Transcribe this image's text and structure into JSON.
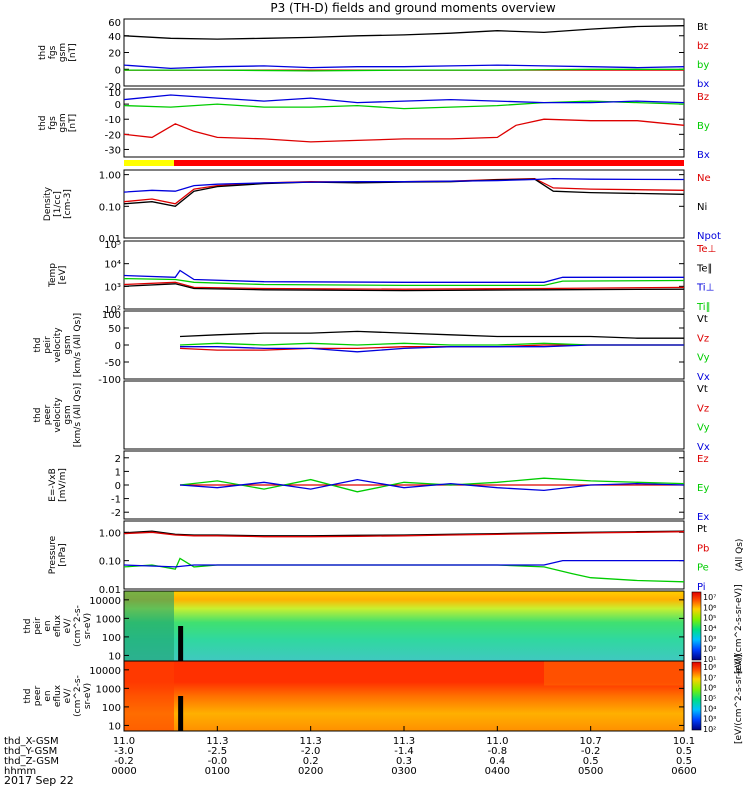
{
  "title": "P3 (TH-D) fields and ground moments overview",
  "date_label": "2017 Sep 22",
  "chart_data": [
    {
      "type": "line",
      "ylabel": [
        "thd",
        "fgs",
        "gsm",
        "[nT]"
      ],
      "ylim": [
        -20,
        60
      ],
      "yticks": [
        60,
        40,
        20,
        0,
        -20
      ],
      "series": [
        {
          "name": "Bt",
          "color": "#000000",
          "x": [
            0,
            0.5,
            1,
            1.5,
            2,
            2.5,
            3,
            3.5,
            4,
            4.5,
            5,
            5.5,
            6
          ],
          "values": [
            40,
            37,
            36,
            37,
            38,
            40,
            41,
            43,
            46,
            44,
            48,
            51,
            52
          ]
        },
        {
          "name": "bz",
          "color": "#dd0000",
          "x": [
            0,
            1,
            2,
            3,
            4,
            5,
            6
          ],
          "values": [
            -1,
            -1,
            -1,
            -1,
            -1,
            -1,
            -1
          ]
        },
        {
          "name": "by",
          "color": "#00cc00",
          "x": [
            0,
            1,
            2,
            3,
            4,
            5,
            6
          ],
          "values": [
            -1,
            -1,
            -2,
            -1,
            -1,
            0,
            0
          ]
        },
        {
          "name": "bx",
          "color": "#0000dd",
          "x": [
            0,
            0.5,
            1,
            1.5,
            2,
            2.5,
            3,
            3.5,
            4,
            4.5,
            5,
            5.5,
            6
          ],
          "values": [
            5,
            1,
            3,
            4,
            2,
            3,
            3,
            4,
            5,
            4,
            3,
            2,
            3
          ]
        }
      ]
    },
    {
      "type": "line",
      "ylabel": [
        "thd",
        "fgs",
        "gsm",
        "[nT]"
      ],
      "ylim": [
        -35,
        10
      ],
      "yticks": [
        10,
        0,
        -10,
        -20,
        -30
      ],
      "series": [
        {
          "name": "Bz",
          "color": "#dd0000",
          "x": [
            0,
            0.3,
            0.55,
            0.75,
            1,
            1.5,
            2,
            2.5,
            3,
            3.5,
            4,
            4.2,
            4.5,
            5,
            5.5,
            6
          ],
          "values": [
            -20,
            -22,
            -13,
            -18,
            -22,
            -23,
            -25,
            -24,
            -23,
            -23,
            -22,
            -14,
            -10,
            -11,
            -11,
            -14
          ]
        },
        {
          "name": "By",
          "color": "#00cc00",
          "x": [
            0,
            0.5,
            1,
            1.5,
            2,
            2.5,
            3,
            3.5,
            4,
            4.5,
            5,
            5.5,
            6
          ],
          "values": [
            -1,
            -2,
            0,
            -2,
            -2,
            -1,
            -3,
            -2,
            -1,
            1,
            2,
            1,
            0
          ]
        },
        {
          "name": "Bx",
          "color": "#0000dd",
          "x": [
            0,
            0.5,
            1,
            1.5,
            2,
            2.5,
            3,
            3.5,
            4,
            4.5,
            5,
            5.5,
            6
          ],
          "values": [
            3,
            6,
            4,
            2,
            4,
            1,
            2,
            3,
            2,
            1,
            1,
            2,
            1
          ]
        }
      ]
    },
    {
      "type": "line",
      "ylabel": [
        "Density",
        "[1/cc]",
        "[cm-3]"
      ],
      "yscale": "log",
      "ylim": [
        0.01,
        1.4
      ],
      "yticks": [
        1.0,
        0.1,
        0.01
      ],
      "yticklabels": [
        "1.00",
        "0.10",
        "0.01"
      ],
      "series": [
        {
          "name": "Ne",
          "color": "#dd0000",
          "x": [
            0,
            0.3,
            0.55,
            0.75,
            1,
            1.5,
            2,
            2.5,
            3,
            3.5,
            4,
            4.4,
            4.6,
            5,
            6
          ],
          "values": [
            0.14,
            0.17,
            0.12,
            0.35,
            0.45,
            0.55,
            0.6,
            0.58,
            0.6,
            0.62,
            0.7,
            0.75,
            0.38,
            0.35,
            0.32
          ]
        },
        {
          "name": "Ni",
          "color": "#000000",
          "x": [
            0,
            0.3,
            0.55,
            0.75,
            1,
            1.5,
            2,
            2.5,
            3,
            3.5,
            4,
            4.4,
            4.6,
            5,
            6
          ],
          "values": [
            0.12,
            0.14,
            0.1,
            0.3,
            0.42,
            0.52,
            0.58,
            0.55,
            0.58,
            0.6,
            0.68,
            0.72,
            0.3,
            0.27,
            0.24
          ]
        },
        {
          "name": "Npot",
          "color": "#0000dd",
          "x": [
            0,
            0.3,
            0.55,
            0.75,
            1,
            1.5,
            2,
            2.5,
            3,
            3.5,
            4,
            4.4,
            4.6,
            5,
            6
          ],
          "values": [
            0.28,
            0.32,
            0.3,
            0.45,
            0.5,
            0.55,
            0.58,
            0.6,
            0.6,
            0.62,
            0.65,
            0.7,
            0.75,
            0.72,
            0.7
          ]
        }
      ]
    },
    {
      "type": "line",
      "ylabel": [
        "Temp",
        "[eV]"
      ],
      "yscale": "log",
      "ylim": [
        100,
        100000
      ],
      "yticks": [
        100000,
        10000,
        1000,
        100
      ],
      "yticklabels": [
        "10⁵",
        "10⁴",
        "10³",
        "10²"
      ],
      "series": [
        {
          "name": "Te⊥",
          "color": "#dd0000",
          "x": [
            0,
            0.55,
            0.75,
            1.5,
            3,
            4.5,
            6
          ],
          "values": [
            1200,
            1500,
            900,
            800,
            750,
            800,
            900
          ]
        },
        {
          "name": "Te∥",
          "color": "#000000",
          "x": [
            0,
            0.55,
            0.75,
            1.5,
            3,
            4.5,
            6
          ],
          "values": [
            1000,
            1300,
            800,
            700,
            650,
            700,
            750
          ]
        },
        {
          "name": "Ti⊥",
          "color": "#0000dd",
          "x": [
            0,
            0.55,
            0.6,
            0.75,
            1.5,
            3,
            4.5,
            4.7,
            6
          ],
          "values": [
            3000,
            2500,
            5000,
            2000,
            1600,
            1500,
            1500,
            2500,
            2500
          ]
        },
        {
          "name": "Ti∥",
          "color": "#00cc00",
          "x": [
            0,
            0.55,
            0.75,
            1.5,
            3,
            4.5,
            4.7,
            6
          ],
          "values": [
            2200,
            2000,
            1500,
            1200,
            1100,
            1100,
            1700,
            1800
          ]
        }
      ]
    },
    {
      "type": "line",
      "ylabel": [
        "thd",
        "peir",
        "velocity",
        "gsm",
        "[km/s (All Qs)]"
      ],
      "ylim": [
        -100,
        100
      ],
      "yticks": [
        100,
        50,
        0,
        -50,
        -100
      ],
      "series": [
        {
          "name": "Vt",
          "color": "#000000",
          "x": [
            0.6,
            1,
            1.5,
            2,
            2.5,
            3,
            3.5,
            4,
            4.5,
            5,
            5.5,
            6
          ],
          "values": [
            25,
            30,
            35,
            35,
            40,
            35,
            30,
            25,
            25,
            25,
            20,
            20
          ]
        },
        {
          "name": "Vz",
          "color": "#dd0000",
          "x": [
            0.6,
            1,
            1.5,
            2,
            2.5,
            3,
            3.5,
            4,
            4.5,
            5,
            5.5,
            6
          ],
          "values": [
            -10,
            -15,
            -15,
            -10,
            -10,
            -5,
            -5,
            -5,
            0,
            0,
            0,
            0
          ]
        },
        {
          "name": "Vy",
          "color": "#00cc00",
          "x": [
            0.6,
            1,
            1.5,
            2,
            2.5,
            3,
            3.5,
            4,
            4.5,
            5,
            5.5,
            6
          ],
          "values": [
            0,
            5,
            0,
            5,
            0,
            5,
            0,
            0,
            5,
            0,
            0,
            0
          ]
        },
        {
          "name": "Vx",
          "color": "#0000dd",
          "x": [
            0.6,
            1,
            1.5,
            2,
            2.5,
            3,
            3.5,
            4,
            4.5,
            5,
            5.5,
            6
          ],
          "values": [
            -5,
            -5,
            -10,
            -10,
            -20,
            -10,
            -5,
            -5,
            -5,
            0,
            0,
            0
          ]
        }
      ]
    },
    {
      "type": "line",
      "ylabel": [
        "thd",
        "peer",
        "velocity",
        "gsm",
        "[km/s (All Qs)]"
      ],
      "series": [
        {
          "name": "Vt",
          "color": "#000000",
          "values": []
        },
        {
          "name": "Vz",
          "color": "#dd0000",
          "values": []
        },
        {
          "name": "Vy",
          "color": "#00cc00",
          "values": []
        },
        {
          "name": "Vx",
          "color": "#0000dd",
          "values": []
        }
      ]
    },
    {
      "type": "line",
      "ylabel": [
        "E=-VxB",
        "[mV/m]"
      ],
      "ylim": [
        -2.5,
        2.5
      ],
      "yticks": [
        2,
        1,
        0,
        -1,
        -2
      ],
      "series": [
        {
          "name": "Ez",
          "color": "#dd0000",
          "x": [
            0.6,
            6
          ],
          "values": [
            0,
            0
          ]
        },
        {
          "name": "Ey",
          "color": "#00cc00",
          "x": [
            0.6,
            1,
            1.5,
            2,
            2.5,
            3,
            3.5,
            4,
            4.5,
            5,
            5.5,
            6
          ],
          "values": [
            0,
            0.3,
            -0.3,
            0.4,
            -0.5,
            0.2,
            0,
            0.2,
            0.5,
            0.3,
            0.2,
            0.1
          ]
        },
        {
          "name": "Ex",
          "color": "#0000dd",
          "x": [
            0.6,
            1,
            1.5,
            2,
            2.5,
            3,
            3.5,
            4,
            4.5,
            5,
            5.5,
            6
          ],
          "values": [
            0,
            -0.2,
            0.2,
            -0.3,
            0.4,
            -0.2,
            0.1,
            -0.2,
            -0.4,
            0,
            0.1,
            0
          ]
        }
      ]
    },
    {
      "type": "line",
      "ylabel": [
        "Pressure",
        "[nPa]"
      ],
      "ylabel_right": "(All Qs)",
      "yscale": "log",
      "ylim": [
        0.01,
        2.5
      ],
      "yticks": [
        1.0,
        0.1,
        0.01
      ],
      "yticklabels": [
        "1.00",
        "0.10",
        "0.01"
      ],
      "series": [
        {
          "name": "Pt",
          "color": "#000000",
          "x": [
            0,
            0.3,
            0.55,
            0.75,
            1,
            1.5,
            2,
            2.5,
            3,
            3.5,
            4,
            4.5,
            5,
            5.5,
            6
          ],
          "values": [
            0.95,
            1.1,
            0.85,
            0.8,
            0.8,
            0.75,
            0.75,
            0.78,
            0.8,
            0.85,
            0.9,
            0.95,
            1.0,
            1.05,
            1.1
          ]
        },
        {
          "name": "Pb",
          "color": "#dd0000",
          "x": [
            0,
            0.3,
            0.55,
            0.75,
            1,
            1.5,
            2,
            2.5,
            3,
            3.5,
            4,
            4.5,
            5,
            5.5,
            6
          ],
          "values": [
            0.9,
            1.0,
            0.8,
            0.75,
            0.75,
            0.7,
            0.7,
            0.72,
            0.75,
            0.8,
            0.85,
            0.9,
            0.95,
            1.0,
            1.05
          ]
        },
        {
          "name": "Pe",
          "color": "#00cc00",
          "x": [
            0,
            0.3,
            0.55,
            0.6,
            0.75,
            1,
            2,
            3,
            4,
            4.5,
            4.8,
            5,
            5.5,
            6
          ],
          "values": [
            0.06,
            0.07,
            0.05,
            0.12,
            0.06,
            0.07,
            0.07,
            0.07,
            0.07,
            0.06,
            0.035,
            0.025,
            0.02,
            0.018
          ]
        },
        {
          "name": "Pi",
          "color": "#0000dd",
          "x": [
            0,
            0.55,
            0.75,
            1,
            2,
            3,
            4,
            4.5,
            4.7,
            5,
            6
          ],
          "values": [
            0.07,
            0.06,
            0.07,
            0.07,
            0.07,
            0.07,
            0.07,
            0.07,
            0.1,
            0.1,
            0.1
          ]
        }
      ]
    },
    {
      "type": "heatmap",
      "ylabel": [
        "thd",
        "peir",
        "en",
        "eflux",
        "eV/",
        "(cm^2-s-",
        "sr-eV)"
      ],
      "yscale": "log",
      "ylim": [
        5,
        30000
      ],
      "yticks": [
        10000,
        1000,
        100,
        10
      ],
      "yticklabels": [
        "10000",
        "1000",
        "100",
        "10"
      ],
      "colorbar": {
        "label": "eV/(cm^2-s-sr-eV)",
        "ticks": [
          "10⁷",
          "10⁶",
          "10⁵",
          "10⁴",
          "10³",
          "10²",
          "10¹"
        ]
      }
    },
    {
      "type": "heatmap",
      "ylabel": [
        "thd",
        "peer",
        "en",
        "eflux",
        "eV/",
        "(cm^2-s-",
        "sr-eV)"
      ],
      "yscale": "log",
      "ylim": [
        5,
        30000
      ],
      "yticks": [
        10000,
        1000,
        100,
        10
      ],
      "yticklabels": [
        "10000",
        "1000",
        "100",
        "10"
      ],
      "colorbar": {
        "label": "eV/(cm^2-s-sr-eV)",
        "ticks": [
          "10⁸",
          "10⁷",
          "10⁶",
          "10⁵",
          "10⁴",
          "10³",
          "10²"
        ]
      }
    }
  ],
  "x_axis": {
    "row_labels": [
      "thd_X-GSM",
      "thd_Y-GSM",
      "thd_Z-GSM",
      "hhmm"
    ],
    "ticks": [
      {
        "x": 0,
        "values": [
          "11.0",
          "-3.0",
          "-0.2",
          "0000"
        ]
      },
      {
        "x": 1,
        "values": [
          "11.3",
          "-2.5",
          "-0.0",
          "0100"
        ]
      },
      {
        "x": 2,
        "values": [
          "11.3",
          "-2.0",
          "0.2",
          "0200"
        ]
      },
      {
        "x": 3,
        "values": [
          "11.3",
          "-1.4",
          "0.3",
          "0300"
        ]
      },
      {
        "x": 4,
        "values": [
          "11.0",
          "-0.8",
          "0.4",
          "0400"
        ]
      },
      {
        "x": 5,
        "values": [
          "10.7",
          "-0.2",
          "0.5",
          "0500"
        ]
      },
      {
        "x": 6,
        "values": [
          "10.1",
          "0.5",
          "0.5",
          "0600"
        ]
      }
    ]
  }
}
